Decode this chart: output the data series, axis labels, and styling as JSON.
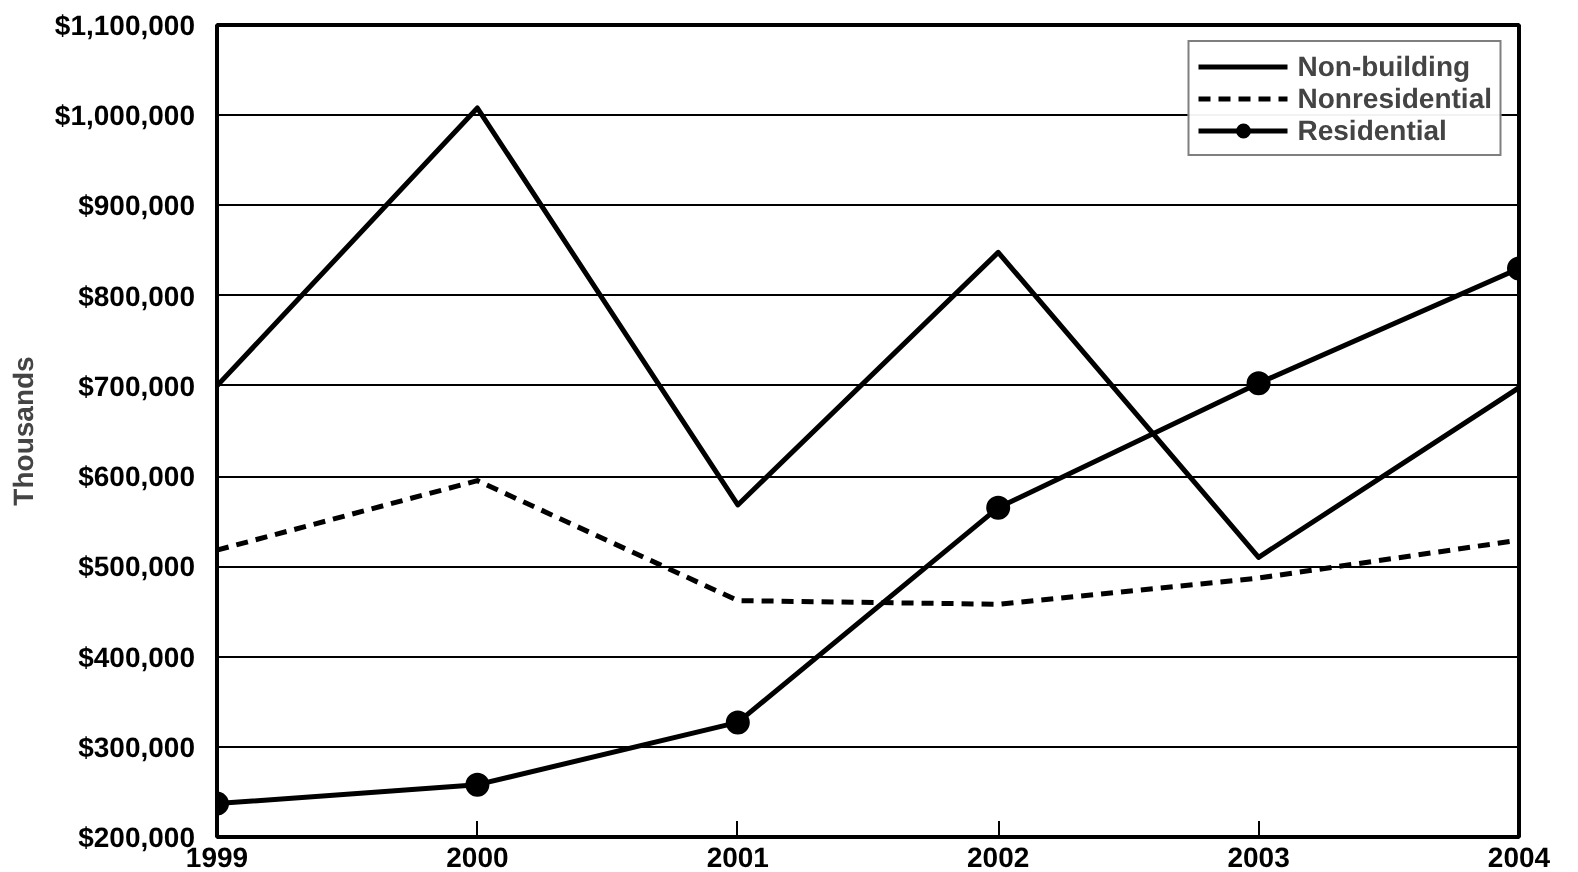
{
  "chart_data": {
    "type": "line",
    "ylabel": "Thousands",
    "categories": [
      "1999",
      "2000",
      "2001",
      "2002",
      "2003",
      "2004"
    ],
    "series": [
      {
        "name": "Non-building",
        "color": "#000000",
        "line_style": "solid",
        "marker": "none",
        "values": [
          700000,
          1008000,
          568000,
          848000,
          510000,
          698000
        ]
      },
      {
        "name": "Nonresidential",
        "color": "#000000",
        "line_style": "dashed",
        "marker": "none",
        "values": [
          518000,
          595000,
          462000,
          458000,
          487000,
          529000
        ]
      },
      {
        "name": "Residential",
        "color": "#000000",
        "line_style": "solid",
        "marker": "circle",
        "values": [
          237000,
          258000,
          327000,
          565000,
          703000,
          830000
        ]
      }
    ],
    "ylim": [
      200000,
      1100000
    ],
    "yticks": [
      {
        "value": 200000,
        "label": "$200,000"
      },
      {
        "value": 300000,
        "label": "$300,000"
      },
      {
        "value": 400000,
        "label": "$400,000"
      },
      {
        "value": 500000,
        "label": "$500,000"
      },
      {
        "value": 600000,
        "label": "$600,000"
      },
      {
        "value": 700000,
        "label": "$700,000"
      },
      {
        "value": 800000,
        "label": "$800,000"
      },
      {
        "value": 900000,
        "label": "$900,000"
      },
      {
        "value": 1000000,
        "label": "$1,000,000"
      },
      {
        "value": 1100000,
        "label": "$1,100,000"
      }
    ],
    "grid": "y",
    "legend": "top right"
  }
}
